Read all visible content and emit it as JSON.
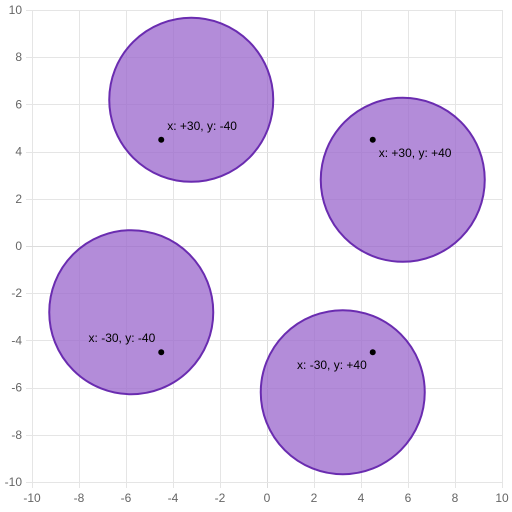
{
  "chart_data": {
    "type": "scatter",
    "xlim": [
      -10,
      10
    ],
    "ylim": [
      -10,
      10
    ],
    "x_ticks": [
      -10,
      -8,
      -6,
      -4,
      -2,
      0,
      2,
      4,
      6,
      8,
      10
    ],
    "y_ticks": [
      -10,
      -8,
      -6,
      -4,
      -2,
      0,
      2,
      4,
      6,
      8,
      10
    ],
    "grid": true,
    "legend": "none",
    "points": [
      {
        "x": -4.5,
        "y": 4.5,
        "label": "x: +30, y: -40",
        "offset_x": 30,
        "offset_y": -40
      },
      {
        "x": 4.5,
        "y": 4.5,
        "label": "x: +30, y: +40",
        "offset_x": 30,
        "offset_y": 40
      },
      {
        "x": -4.5,
        "y": -4.5,
        "label": "x: -30, y: -40",
        "offset_x": -30,
        "offset_y": -40
      },
      {
        "x": 4.5,
        "y": -4.5,
        "label": "x: -30, y: +40",
        "offset_x": -30,
        "offset_y": 40
      }
    ],
    "colors": {
      "circle_fill": "#9966cc",
      "circle_stroke": "#6a2cb0",
      "point": "#000000",
      "grid": "#e5e5e5",
      "tick_text": "#666666"
    }
  }
}
